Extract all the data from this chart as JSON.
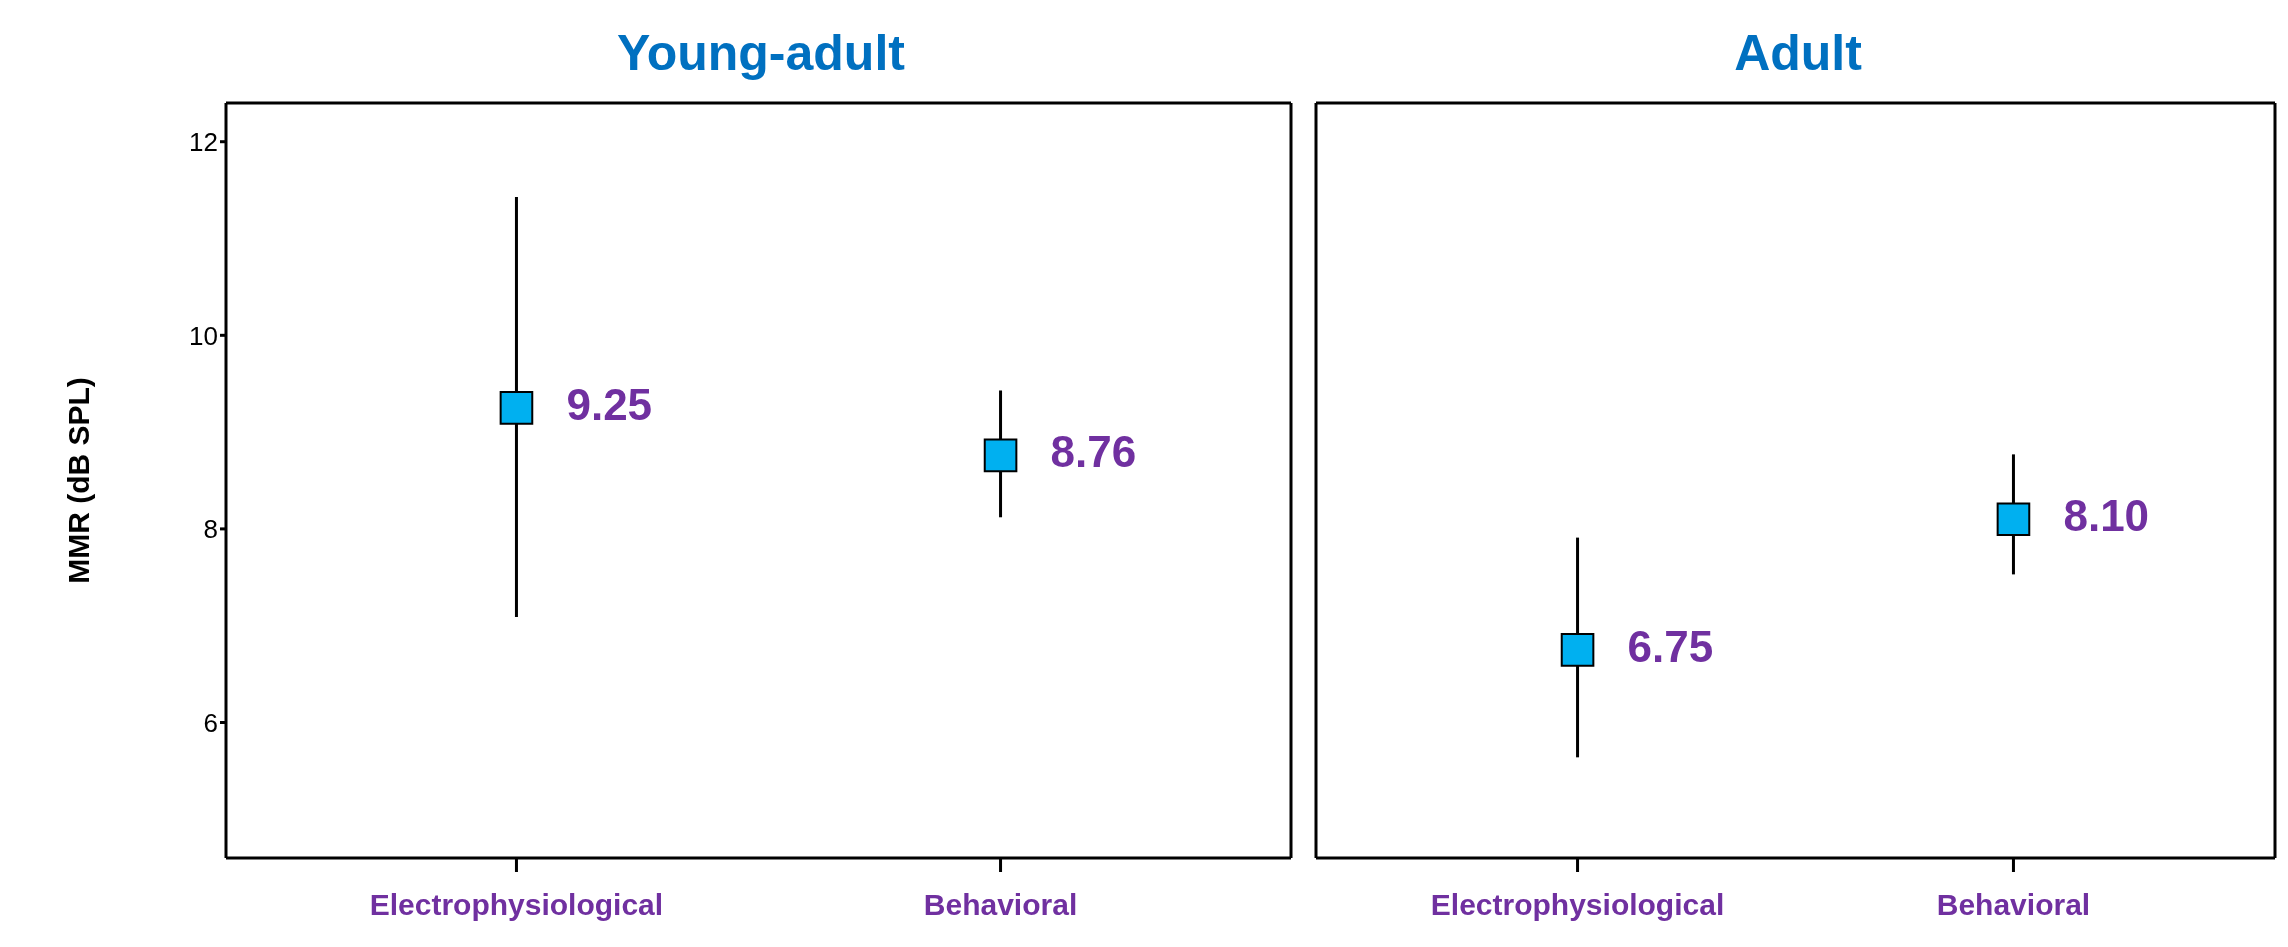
{
  "chart_data": [
    {
      "type": "scatter",
      "title": "Young-adult",
      "ylabel": "MMR (dB SPL)",
      "categories": [
        "Electrophysiological",
        "Behavioral"
      ],
      "series": [
        {
          "color": "#00b0f0",
          "values": [
            9.25,
            8.76
          ],
          "errors": [
            [
              7.09,
              11.43
            ],
            [
              8.12,
              9.43
            ]
          ],
          "value_labels": [
            "9.25",
            "8.76"
          ]
        }
      ],
      "ylim": [
        4.6,
        12.4
      ],
      "yticks": [
        6,
        8,
        10,
        12
      ],
      "marker": "square",
      "grid": false,
      "legend": false
    },
    {
      "type": "scatter",
      "title": "Adult",
      "categories": [
        "Electrophysiological",
        "Behavioral"
      ],
      "series": [
        {
          "color": "#00b0f0",
          "values": [
            6.75,
            8.1
          ],
          "errors": [
            [
              5.64,
              7.91
            ],
            [
              7.53,
              8.77
            ]
          ],
          "value_labels": [
            "6.75",
            "8.10"
          ]
        }
      ],
      "ylim": [
        4.6,
        12.4
      ],
      "yticks": [
        6,
        8,
        10,
        12
      ],
      "tick_labels": "x",
      "marker": "square",
      "grid": false,
      "legend": false
    }
  ]
}
